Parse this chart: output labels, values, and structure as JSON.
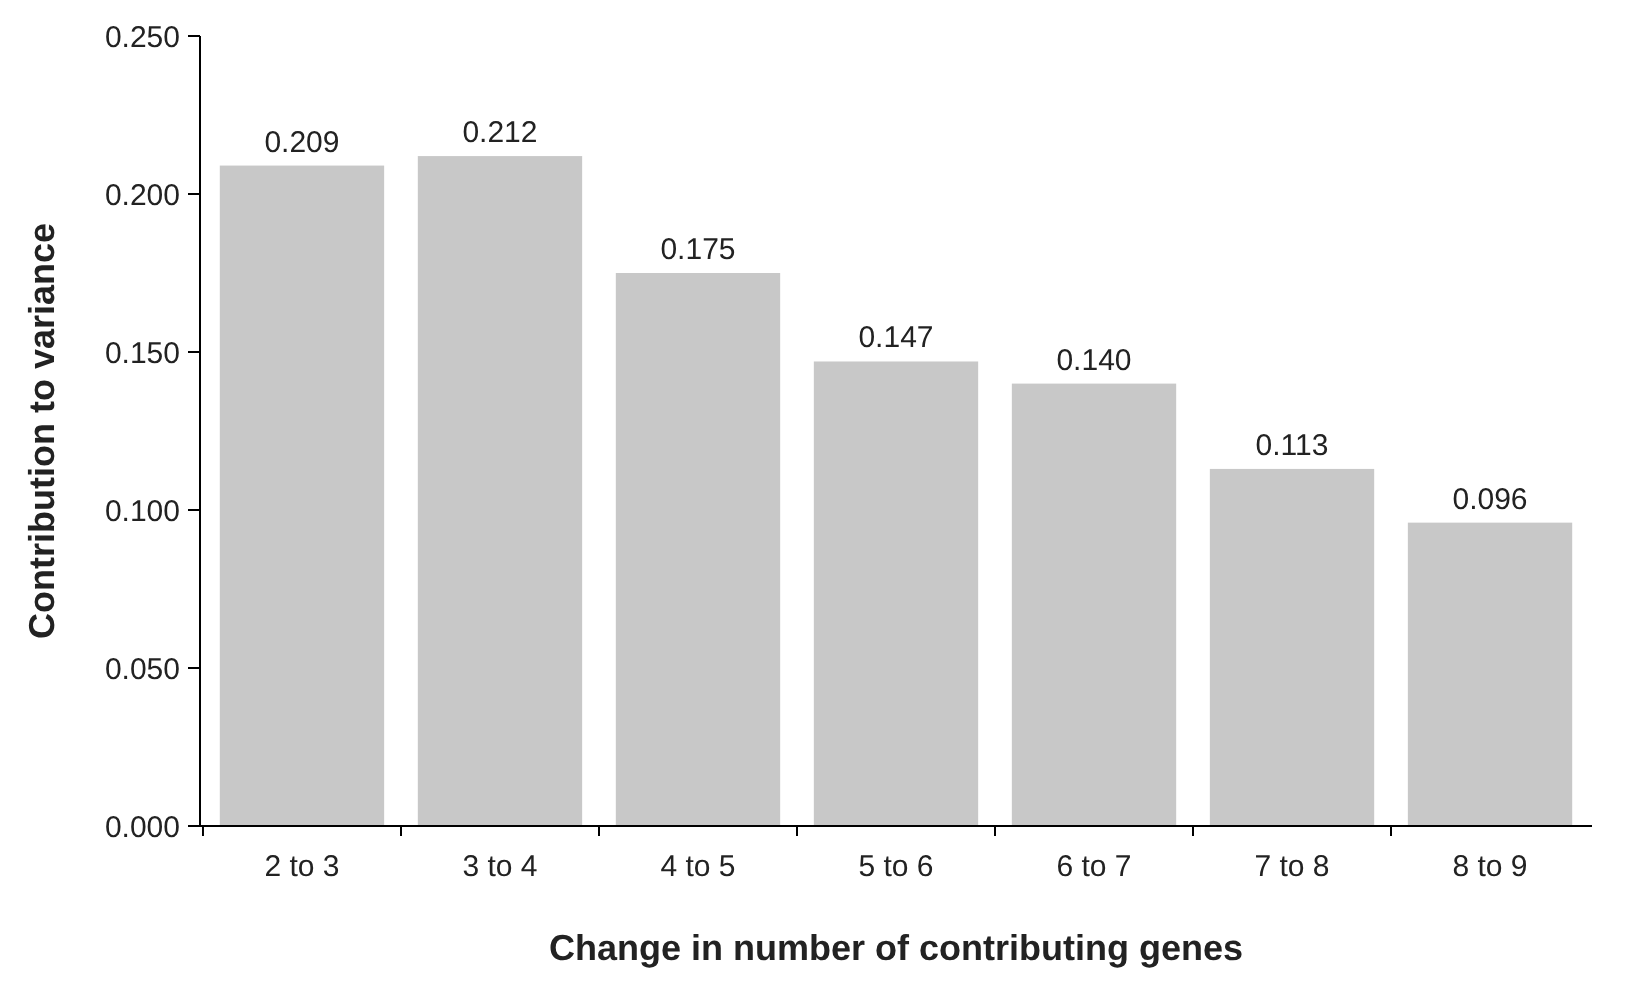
{
  "chart_data": {
    "type": "bar",
    "xlabel": "Change in number of contributing genes",
    "ylabel": "Contribution to variance",
    "categories": [
      "2 to 3",
      "3 to 4",
      "4 to 5",
      "5 to 6",
      "6 to 7",
      "7 to 8",
      "8 to 9"
    ],
    "values": [
      0.209,
      0.212,
      0.175,
      0.147,
      0.14,
      0.113,
      0.096
    ],
    "value_labels": [
      "0.209",
      "0.212",
      "0.175",
      "0.147",
      "0.140",
      "0.113",
      "0.096"
    ],
    "color": "#c8c8c8",
    "ylim": [
      0,
      0.25
    ],
    "yticks": [
      {
        "value": 0,
        "label": "0.000"
      },
      {
        "value": 0.05,
        "label": "0.050"
      },
      {
        "value": 0.1,
        "label": "0.100"
      },
      {
        "value": 0.15,
        "label": "0.150"
      },
      {
        "value": 0.2,
        "label": "0.200"
      },
      {
        "value": 0.25,
        "label": "0.250"
      }
    ],
    "grid": false
  }
}
